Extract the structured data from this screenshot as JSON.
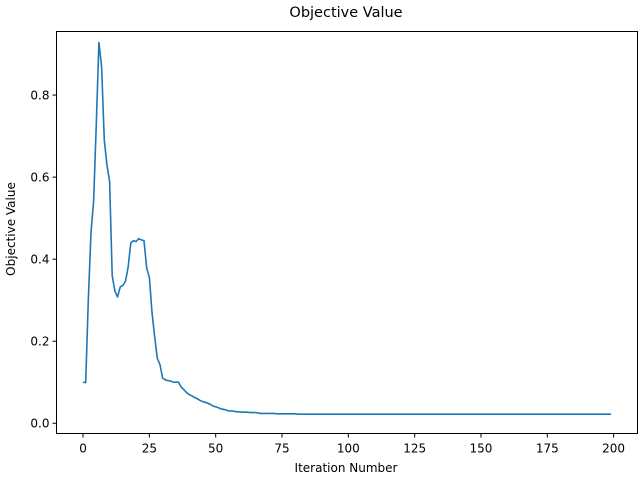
{
  "chart_data": {
    "type": "line",
    "title": "Objective Value",
    "xlabel": "Iteration Number",
    "ylabel": "Objective Value",
    "xlim": [
      -10,
      209
    ],
    "ylim": [
      -0.025,
      0.955
    ],
    "xticks": [
      0,
      25,
      50,
      75,
      100,
      125,
      150,
      175,
      200
    ],
    "xtick_labels": [
      "0",
      "25",
      "50",
      "75",
      "100",
      "125",
      "150",
      "175",
      "200"
    ],
    "yticks": [
      0.0,
      0.2,
      0.4,
      0.6,
      0.8
    ],
    "ytick_labels": [
      "0.0",
      "0.2",
      "0.4",
      "0.6",
      "0.8"
    ],
    "grid": false,
    "legend": null,
    "series": [
      {
        "name": "Objective Value",
        "color": "#1f77b4",
        "x_start": 0,
        "x_step": 1,
        "values": [
          0.1,
          0.099,
          0.3,
          0.465,
          0.54,
          0.73,
          0.928,
          0.87,
          0.69,
          0.63,
          0.59,
          0.36,
          0.322,
          0.308,
          0.332,
          0.336,
          0.346,
          0.38,
          0.44,
          0.445,
          0.443,
          0.45,
          0.447,
          0.445,
          0.378,
          0.355,
          0.27,
          0.21,
          0.158,
          0.143,
          0.11,
          0.106,
          0.104,
          0.103,
          0.1,
          0.1,
          0.1,
          0.088,
          0.082,
          0.075,
          0.07,
          0.067,
          0.063,
          0.06,
          0.056,
          0.053,
          0.051,
          0.049,
          0.046,
          0.042,
          0.04,
          0.038,
          0.035,
          0.034,
          0.032,
          0.03,
          0.03,
          0.029,
          0.028,
          0.028,
          0.027,
          0.027,
          0.027,
          0.026,
          0.026,
          0.026,
          0.025,
          0.024,
          0.024,
          0.024,
          0.024,
          0.024,
          0.024,
          0.023,
          0.023,
          0.023,
          0.023,
          0.023,
          0.023,
          0.023,
          0.023,
          0.022,
          0.022,
          0.022,
          0.022,
          0.022,
          0.022,
          0.022,
          0.022,
          0.022,
          0.022,
          0.022,
          0.022,
          0.022,
          0.022,
          0.022,
          0.022,
          0.022,
          0.022,
          0.022,
          0.022,
          0.022,
          0.022,
          0.022,
          0.022,
          0.022,
          0.022,
          0.022,
          0.022,
          0.022,
          0.022,
          0.022,
          0.022,
          0.022,
          0.022,
          0.022,
          0.022,
          0.022,
          0.022,
          0.022,
          0.022,
          0.022,
          0.022,
          0.022,
          0.022,
          0.022,
          0.022,
          0.022,
          0.022,
          0.022,
          0.022,
          0.022,
          0.022,
          0.022,
          0.022,
          0.022,
          0.022,
          0.022,
          0.022,
          0.022,
          0.022,
          0.022,
          0.022,
          0.022,
          0.022,
          0.022,
          0.022,
          0.022,
          0.022,
          0.022,
          0.022,
          0.022,
          0.022,
          0.022,
          0.022,
          0.022,
          0.022,
          0.022,
          0.022,
          0.022,
          0.022,
          0.022,
          0.022,
          0.022,
          0.022,
          0.022,
          0.022,
          0.022,
          0.022,
          0.022,
          0.022,
          0.022,
          0.022,
          0.022,
          0.022,
          0.022,
          0.022,
          0.022,
          0.022,
          0.022,
          0.022,
          0.022,
          0.022,
          0.022,
          0.022,
          0.022,
          0.022,
          0.022,
          0.022,
          0.022,
          0.022,
          0.022,
          0.022,
          0.022,
          0.022,
          0.022,
          0.022,
          0.022,
          0.022,
          0.022
        ]
      }
    ]
  }
}
